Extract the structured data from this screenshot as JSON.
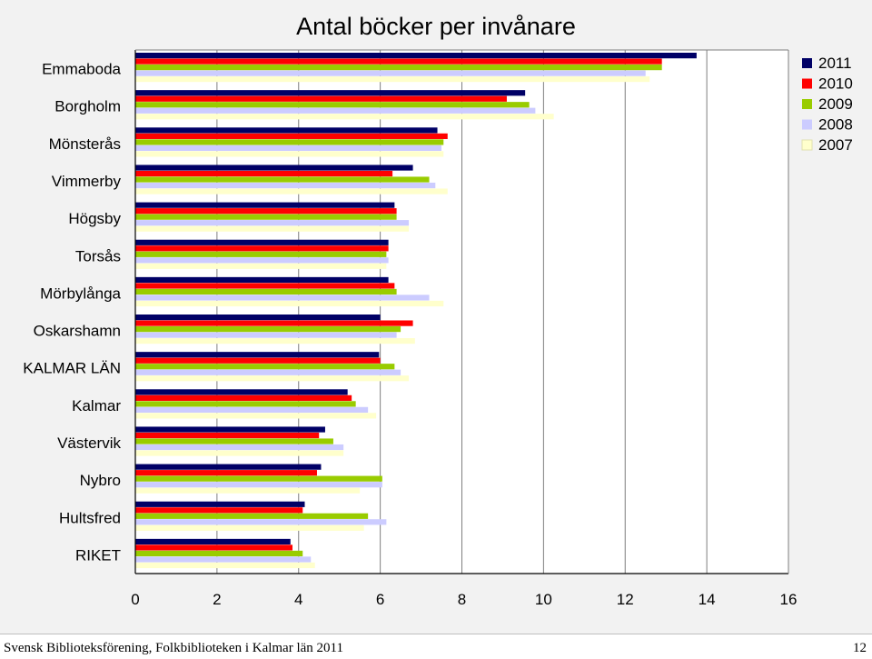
{
  "chart_data": {
    "type": "bar",
    "orientation": "horizontal",
    "title": "Antal böcker per invånare",
    "categories": [
      "Emmaboda",
      "Borgholm",
      "Mönsterås",
      "Vimmerby",
      "Högsby",
      "Torsås",
      "Mörbylånga",
      "Oskarshamn",
      "KALMAR LÄN",
      "Kalmar",
      "Västervik",
      "Nybro",
      "Hultsfred",
      "RIKET"
    ],
    "series": [
      {
        "name": "2011",
        "color": "#000066",
        "values": [
          13.75,
          9.55,
          7.4,
          6.8,
          6.35,
          6.2,
          6.2,
          6.0,
          5.97,
          5.2,
          4.65,
          4.55,
          4.15,
          3.8
        ]
      },
      {
        "name": "2010",
        "color": "#ff0000",
        "values": [
          12.9,
          9.1,
          7.65,
          6.3,
          6.4,
          6.2,
          6.35,
          6.8,
          6.0,
          5.3,
          4.5,
          4.45,
          4.1,
          3.85
        ]
      },
      {
        "name": "2009",
        "color": "#99cc00",
        "values": [
          12.9,
          9.65,
          7.55,
          7.2,
          6.4,
          6.15,
          6.4,
          6.5,
          6.35,
          5.4,
          4.85,
          6.05,
          5.7,
          4.1
        ]
      },
      {
        "name": "2008",
        "color": "#ccccff",
        "values": [
          12.5,
          9.8,
          7.5,
          7.35,
          6.7,
          6.2,
          7.2,
          6.4,
          6.5,
          5.7,
          5.1,
          6.05,
          6.15,
          4.3
        ]
      },
      {
        "name": "2007",
        "color": "#ffffcc",
        "values": [
          12.6,
          10.25,
          7.55,
          7.65,
          6.7,
          6.15,
          7.55,
          6.85,
          6.7,
          5.9,
          5.1,
          5.5,
          5.6,
          4.4
        ]
      }
    ],
    "xlim": [
      0,
      16
    ],
    "xticks": [
      "0",
      "2",
      "4",
      "6",
      "8",
      "10",
      "12",
      "14",
      "16"
    ],
    "grid": true,
    "legend": "top-right"
  },
  "footer": {
    "left": "Svensk Biblioteksförening, Folkbiblioteken i Kalmar län 2011",
    "page_number": "12"
  }
}
